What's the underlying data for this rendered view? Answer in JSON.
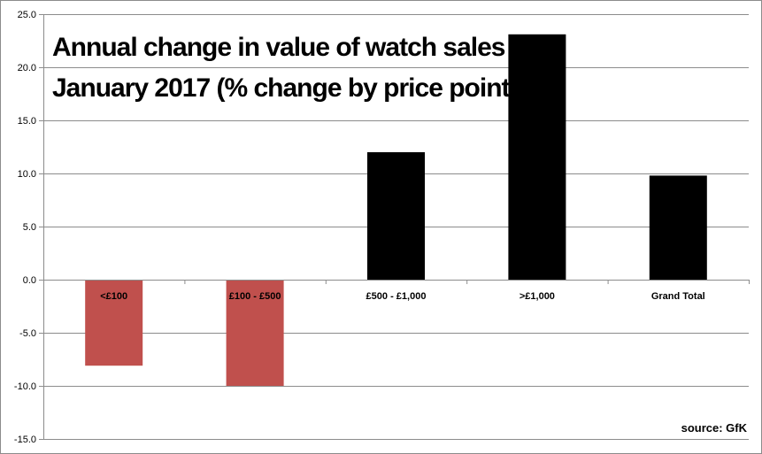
{
  "chart_data": {
    "type": "bar",
    "title_lines": [
      "Annual change in value of watch sales in",
      "January 2017 (% change by price point)."
    ],
    "categories": [
      "<£100",
      "£100 - £500",
      "£500 - £1,000",
      ">£1,000",
      "Grand Total"
    ],
    "values": [
      -8.1,
      -10.0,
      12.0,
      23.1,
      9.8
    ],
    "ylim": [
      -15,
      25
    ],
    "yticks": [
      "25.0",
      "20.0",
      "15.0",
      "10.0",
      "5.0",
      "0.0",
      "-5.0",
      "-10.0",
      "-15.0"
    ],
    "ytick_values": [
      25,
      20,
      15,
      10,
      5,
      0,
      -5,
      -10,
      -15
    ],
    "grid": true,
    "source": "source: GfK",
    "colors": {
      "positive": "#000000",
      "negative": "#c0504d",
      "grid": "#8c8c8c",
      "axis": "#8c8c8c"
    }
  }
}
